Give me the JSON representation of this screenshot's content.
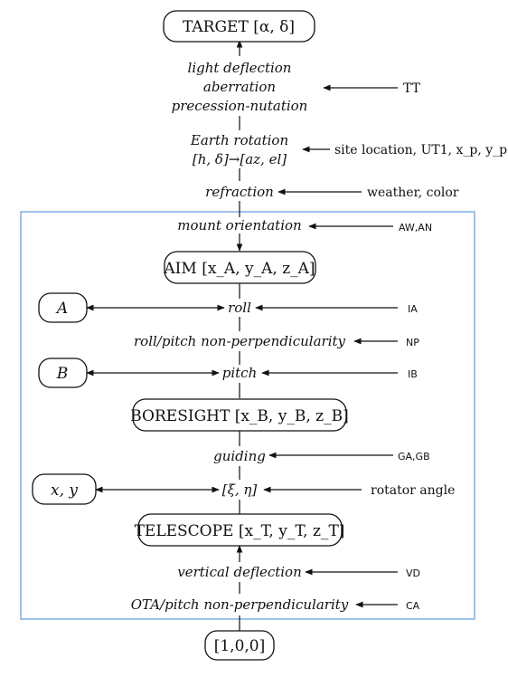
{
  "nodes": {
    "target": "TARGET [α, δ]",
    "aim": "AIM [x_A, y_A, z_A]",
    "boresight": "BORESIGHT [x_B, y_B, z_B]",
    "telescope": "TELESCOPE [x_T, y_T, z_T]",
    "origin": "[1,0,0]",
    "a": "A",
    "b": "B",
    "xy": "x, y"
  },
  "steps": {
    "light_deflection": "light deflection",
    "aberration": "aberration",
    "precession_nutation": "precession-nutation",
    "earth_rotation": "Earth rotation",
    "hd_azel": "[h, δ]→[az, el]",
    "refraction": "refraction",
    "mount_orientation": "mount orientation",
    "roll": "roll",
    "roll_pitch_np": "roll/pitch non-perpendicularity",
    "pitch": "pitch",
    "guiding": "guiding",
    "xi_eta": "[ξ, η]",
    "vertical_deflection": "vertical deflection",
    "ota_pitch_np": "OTA/pitch non-perpendicularity"
  },
  "inputs": {
    "tt": "TT",
    "site": "site location, UT1, x_p, y_p",
    "weather": "weather, color",
    "aw_an": "AW,AN",
    "ia": "IA",
    "np": "NP",
    "ib": "IB",
    "ga_gb": "GA,GB",
    "rotator": "rotator angle",
    "vd": "VD",
    "ca": "CA"
  },
  "colors": {
    "box_border": "#7eaee6",
    "line": "#111111"
  }
}
